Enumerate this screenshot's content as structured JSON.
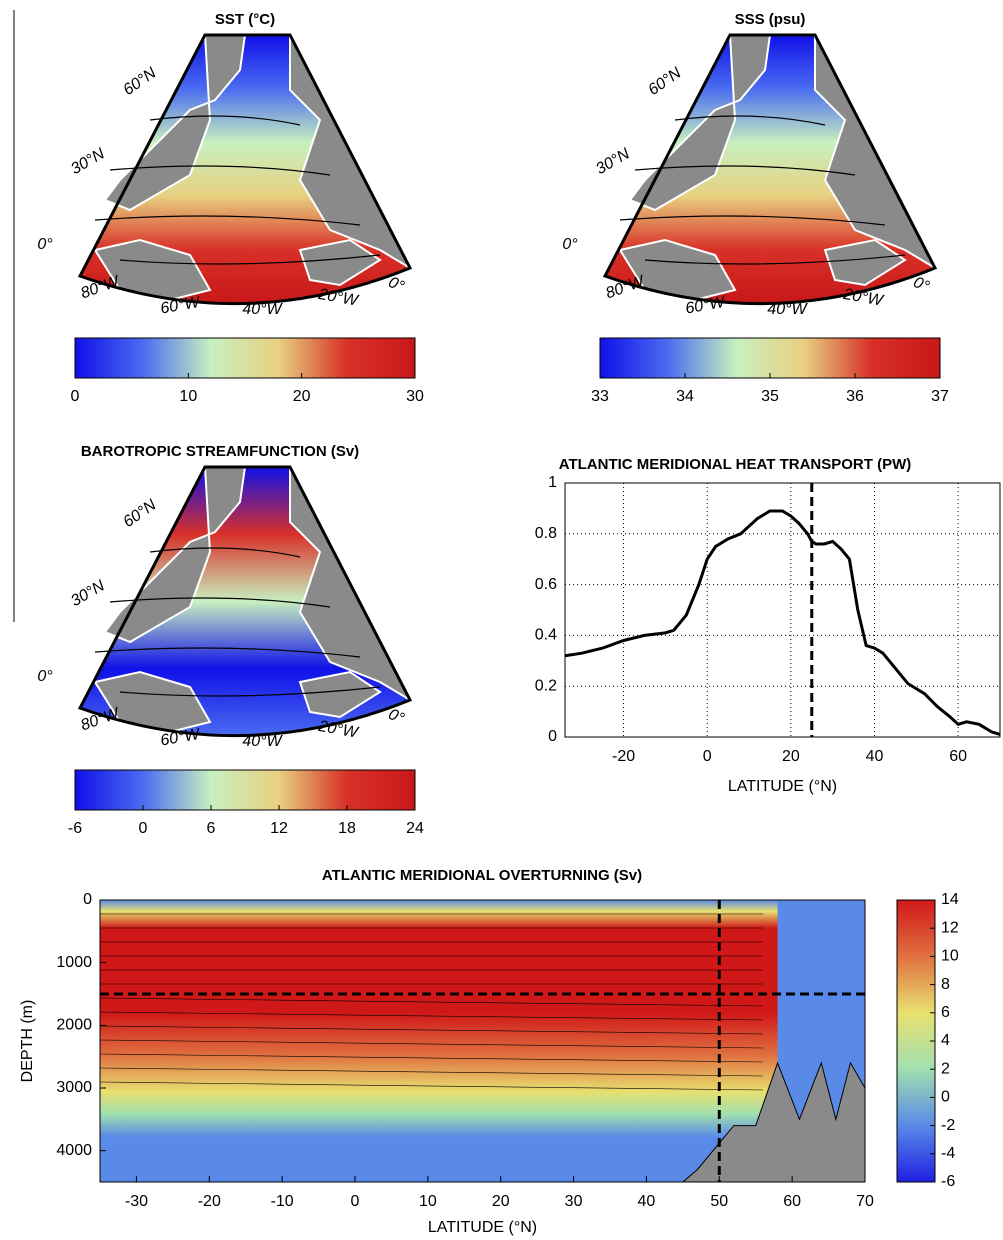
{
  "chart_data": [
    {
      "type": "map",
      "title": "SST (°C)",
      "labels": [
        "60°N",
        "30°N",
        "0°",
        "80°W",
        "60°W",
        "40°W",
        "20°W",
        "0°"
      ],
      "colormap": [
        "#1010e8",
        "#4a6cf0",
        "#c8f0c0",
        "#e8d080",
        "#d83028",
        "#c81818"
      ],
      "colorbar_lim": [
        0,
        30
      ],
      "colorbar_ticks": [
        0,
        10,
        20,
        30
      ]
    },
    {
      "type": "map",
      "title": "SSS (psu)",
      "labels": [
        "60°N",
        "30°N",
        "0°",
        "80°W",
        "60°W",
        "40°W",
        "20°W",
        "0°"
      ],
      "colormap": [
        "#1010e8",
        "#4a6cf0",
        "#c8f0c0",
        "#e8d080",
        "#d83028",
        "#c81818"
      ],
      "colorbar_lim": [
        33,
        37
      ],
      "colorbar_ticks": [
        33,
        34,
        35,
        36,
        37
      ]
    },
    {
      "type": "map",
      "title": "BAROTROPIC STREAMFUNCTION (Sv)",
      "labels": [
        "60°N",
        "30°N",
        "0°",
        "80°W",
        "60°W",
        "40°W",
        "20°W",
        "0°"
      ],
      "colormap": [
        "#1010e8",
        "#4a6cf0",
        "#c8f0c0",
        "#e8d080",
        "#d83028",
        "#c81818"
      ],
      "colorbar_lim": [
        -6,
        24
      ],
      "colorbar_ticks": [
        -6,
        0,
        6,
        12,
        18,
        24
      ]
    },
    {
      "type": "line",
      "title": "ATLANTIC MERIDIONAL HEAT TRANSPORT (PW)",
      "x_label": "LATITUDE (°N)",
      "x": [
        -34,
        -30,
        -25,
        -20,
        -15,
        -10,
        -8,
        -5,
        -2,
        0,
        2,
        5,
        8,
        10,
        12,
        15,
        18,
        20,
        22,
        24,
        25,
        26,
        28,
        30,
        32,
        34,
        36,
        38,
        40,
        42,
        45,
        48,
        50,
        52,
        55,
        58,
        60,
        62,
        65,
        68,
        70
      ],
      "series": [
        {
          "color": "#000000",
          "values": [
            0.32,
            0.33,
            0.35,
            0.38,
            0.4,
            0.41,
            0.42,
            0.48,
            0.6,
            0.7,
            0.75,
            0.78,
            0.8,
            0.83,
            0.86,
            0.89,
            0.89,
            0.87,
            0.84,
            0.8,
            0.77,
            0.76,
            0.76,
            0.77,
            0.74,
            0.7,
            0.5,
            0.36,
            0.35,
            0.33,
            0.27,
            0.21,
            0.19,
            0.17,
            0.12,
            0.08,
            0.05,
            0.06,
            0.05,
            0.02,
            0.01
          ]
        }
      ],
      "reference_x": 25,
      "xlim": [
        -34,
        70
      ],
      "xticks": [
        -20,
        0,
        20,
        40,
        60
      ],
      "ylim": [
        0,
        1
      ],
      "yticks": [
        0,
        0.2,
        0.4,
        0.6,
        0.8,
        1
      ],
      "grid": true
    },
    {
      "type": "contour",
      "title": "ATLANTIC MERIDIONAL OVERTURNING (Sv)",
      "x_label": "LATITUDE (°N)",
      "y_label": "DEPTH (m)",
      "xlim": [
        -35,
        70
      ],
      "xticks": [
        -30,
        -20,
        -10,
        0,
        10,
        20,
        30,
        40,
        50,
        60,
        70
      ],
      "ylim": [
        4500,
        0
      ],
      "yticks": [
        0,
        1000,
        2000,
        3000,
        4000
      ],
      "reference_x": 50,
      "reference_y": 1500,
      "colormap": [
        "#2020e0",
        "#5a8ae8",
        "#a0e0b0",
        "#e8e070",
        "#e07040",
        "#d01818"
      ],
      "colorbar_lim": [
        -6,
        14
      ],
      "colorbar_ticks": [
        -6,
        -4,
        -2,
        0,
        2,
        4,
        6,
        8,
        10,
        12,
        14
      ]
    }
  ]
}
